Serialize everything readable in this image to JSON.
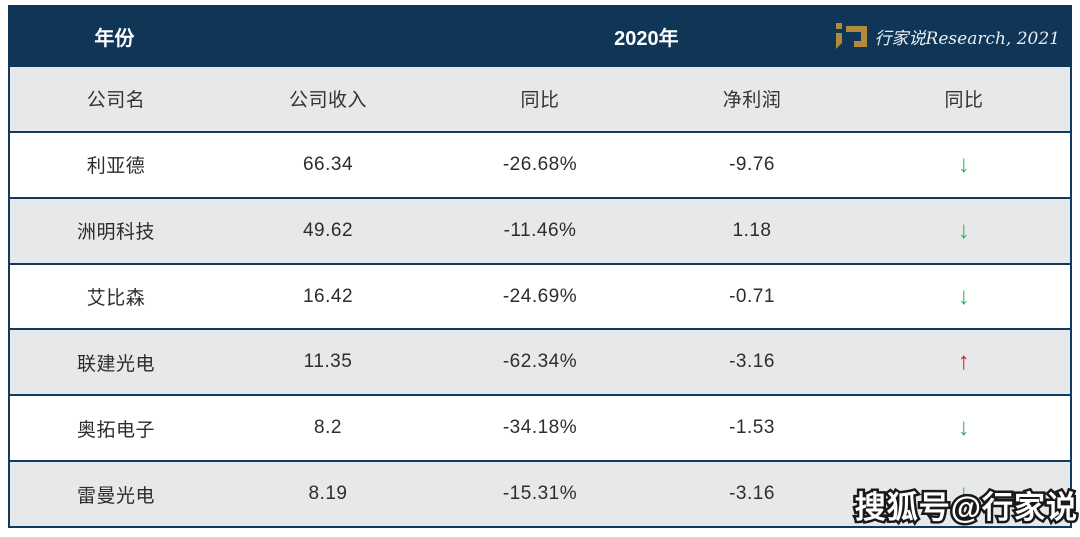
{
  "header": {
    "year_label": "年份",
    "year_value": "2020年",
    "brand_label": "行家说Research, 2021"
  },
  "chart_data": {
    "type": "table",
    "title": "2020年",
    "columns": [
      "公司名",
      "公司收入",
      "同比",
      "净利润",
      "同比"
    ],
    "rows": [
      {
        "company": "利亚德",
        "revenue": "66.34",
        "revenue_yoy": "-26.68%",
        "net_profit": "-9.76",
        "profit_trend": "down"
      },
      {
        "company": "洲明科技",
        "revenue": "49.62",
        "revenue_yoy": "-11.46%",
        "net_profit": "1.18",
        "profit_trend": "down"
      },
      {
        "company": "艾比森",
        "revenue": "16.42",
        "revenue_yoy": "-24.69%",
        "net_profit": "-0.71",
        "profit_trend": "down"
      },
      {
        "company": "联建光电",
        "revenue": "11.35",
        "revenue_yoy": "-62.34%",
        "net_profit": "-3.16",
        "profit_trend": "up"
      },
      {
        "company": "奥拓电子",
        "revenue": "8.2",
        "revenue_yoy": "-34.18%",
        "net_profit": "-1.53",
        "profit_trend": "down"
      },
      {
        "company": "雷曼光电",
        "revenue": "8.19",
        "revenue_yoy": "-15.31%",
        "net_profit": "-3.16",
        "profit_trend": "down"
      }
    ]
  },
  "icons": {
    "down_arrow": "↓",
    "up_arrow": "↑"
  },
  "watermark": "搜狐号@行家说",
  "colors": {
    "header_navy": "#0F3557",
    "border_navy": "#123A5E",
    "row_alt_gray": "#E7E8EA",
    "trend_down_green": "#27B659",
    "trend_up_red": "#C92222",
    "logo_gold": "#B3893C"
  }
}
